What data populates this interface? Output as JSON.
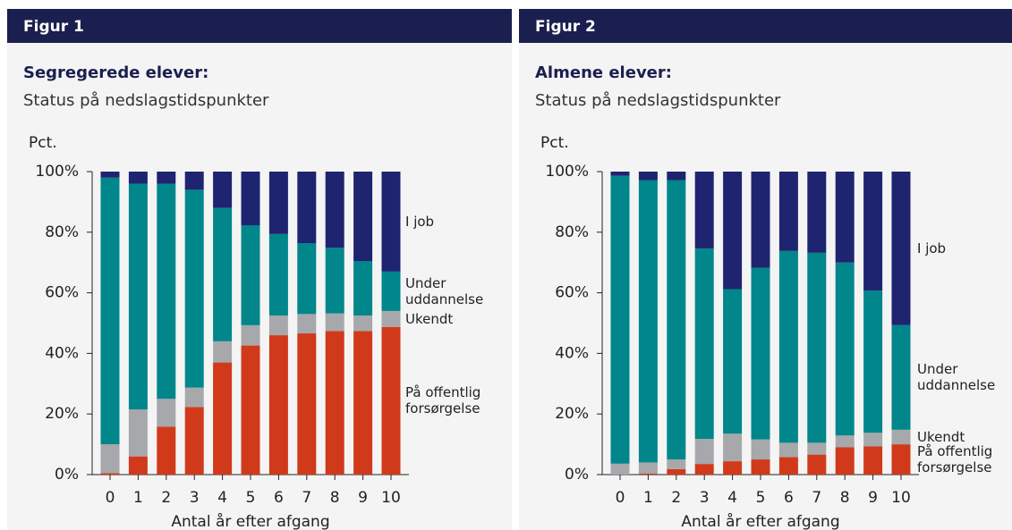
{
  "chart_data": [
    {
      "type": "stacked_bar",
      "figure_label": "Figur 1",
      "title": "Segregerede elever:",
      "subtitle": "Status på nedslagstidspunkter",
      "y_label": "Pct.",
      "x_label": "Antal år efter afgang",
      "categories": [
        "0",
        "1",
        "2",
        "3",
        "4",
        "5",
        "6",
        "7",
        "8",
        "9",
        "10"
      ],
      "ylim": [
        0,
        100
      ],
      "yticks": [
        {
          "value": 0,
          "label": "0%"
        },
        {
          "value": 20,
          "label": "20%"
        },
        {
          "value": 40,
          "label": "40%"
        },
        {
          "value": 60,
          "label": "60%"
        },
        {
          "value": 80,
          "label": "80%"
        },
        {
          "value": 100,
          "label": "100%"
        }
      ],
      "series": [
        {
          "name": "På offentlig forsørgelse",
          "color": "#d03a1b",
          "values": [
            0.5,
            6,
            15.8,
            22.3,
            37,
            42.6,
            46,
            46.6,
            47.4,
            47.4,
            48.7
          ]
        },
        {
          "name": "Ukendt",
          "color": "#a6a8ab",
          "values": [
            9.5,
            15.5,
            9.2,
            6.4,
            7,
            6.7,
            6.5,
            6.4,
            5.8,
            5.1,
            5.3
          ]
        },
        {
          "name": "Under uddannelse",
          "color": "#00868b",
          "values": [
            88,
            74.5,
            71,
            65.3,
            44,
            33,
            26.9,
            23.4,
            21.7,
            18,
            13
          ]
        },
        {
          "name": "I job",
          "color": "#1f2470",
          "values": [
            2,
            4,
            4,
            6,
            12,
            17.7,
            20.6,
            23.6,
            25.1,
            29.5,
            33
          ]
        }
      ]
    },
    {
      "type": "stacked_bar",
      "figure_label": "Figur 2",
      "title": "Almene elever:",
      "subtitle": "Status på nedslagstidspunkter",
      "y_label": "Pct.",
      "x_label": "Antal år efter afgang",
      "categories": [
        "0",
        "1",
        "2",
        "3",
        "4",
        "5",
        "6",
        "7",
        "8",
        "9",
        "10"
      ],
      "ylim": [
        0,
        100
      ],
      "yticks": [
        {
          "value": 0,
          "label": "0%"
        },
        {
          "value": 20,
          "label": "20%"
        },
        {
          "value": 40,
          "label": "40%"
        },
        {
          "value": 60,
          "label": "60%"
        },
        {
          "value": 80,
          "label": "80%"
        },
        {
          "value": 100,
          "label": "100%"
        }
      ],
      "series": [
        {
          "name": "På offentlig forsørgelse",
          "color": "#d03a1b",
          "values": [
            0,
            0.3,
            1.8,
            3.5,
            4.4,
            5,
            5.8,
            6.6,
            9,
            9.3,
            10
          ]
        },
        {
          "name": "Ukendt",
          "color": "#a6a8ab",
          "values": [
            3.6,
            3.7,
            3.2,
            8.3,
            9.1,
            6.6,
            4.7,
            3.9,
            3.9,
            4.5,
            4.8
          ]
        },
        {
          "name": "Under uddannelse",
          "color": "#00868b",
          "values": [
            95,
            93.2,
            92.2,
            62.8,
            47.7,
            56.7,
            63.3,
            62.7,
            57.1,
            46.9,
            34.6
          ]
        },
        {
          "name": "I job",
          "color": "#1f2470",
          "values": [
            1.4,
            2.8,
            2.8,
            25.4,
            38.8,
            31.7,
            26.2,
            26.8,
            30,
            39.3,
            50.6
          ]
        }
      ]
    }
  ]
}
